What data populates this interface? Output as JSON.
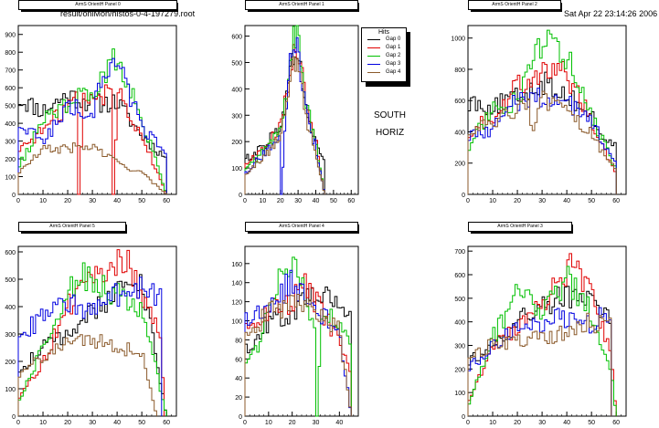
{
  "header": {
    "file_path": "result/onlMon/histos-0-4-197279.root",
    "datetime": "Sat Apr 22 23:14:26 2006"
  },
  "side_label": {
    "line1": "SOUTH",
    "line2": "HORIZ"
  },
  "legend": {
    "title": "Hits",
    "entries": [
      {
        "label": "Gap 0",
        "color": "#000000"
      },
      {
        "label": "Gap 1",
        "color": "#e00000"
      },
      {
        "label": "Gap 2",
        "color": "#00c000"
      },
      {
        "label": "Gap 3",
        "color": "#0000e0"
      },
      {
        "label": "Gap 4",
        "color": "#8b5a2b"
      }
    ]
  },
  "chart_data": [
    {
      "type": "line",
      "title": "ArmS OrientH Panel 0",
      "xlim": [
        0,
        64
      ],
      "ylim": [
        0,
        950
      ],
      "xticks": [
        0,
        10,
        20,
        30,
        40,
        50,
        60
      ],
      "yticks": [
        0,
        100,
        200,
        300,
        400,
        500,
        600,
        700,
        800,
        900
      ],
      "series": [
        {
          "color": "#000000",
          "x": [
            0,
            10,
            20,
            30,
            40,
            50,
            60
          ],
          "values": [
            540,
            470,
            560,
            510,
            520,
            330,
            200
          ]
        },
        {
          "color": "#e00000",
          "x": [
            0,
            10,
            20,
            24,
            25,
            26,
            30,
            38,
            39,
            40,
            50,
            60
          ],
          "values": [
            250,
            360,
            500,
            560,
            0,
            540,
            530,
            580,
            0,
            600,
            330,
            0
          ]
        },
        {
          "color": "#00c000",
          "x": [
            0,
            10,
            20,
            30,
            35,
            38,
            40,
            45,
            50,
            55,
            60
          ],
          "values": [
            150,
            410,
            520,
            560,
            660,
            880,
            750,
            620,
            400,
            230,
            0
          ]
        },
        {
          "color": "#0000e0",
          "x": [
            0,
            10,
            20,
            30,
            35,
            38,
            42,
            50,
            60
          ],
          "values": [
            400,
            300,
            490,
            460,
            690,
            760,
            680,
            380,
            240
          ]
        },
        {
          "color": "#8b5a2b",
          "x": [
            0,
            10,
            20,
            30,
            40,
            50,
            60
          ],
          "values": [
            120,
            250,
            260,
            270,
            180,
            120,
            0
          ]
        }
      ]
    },
    {
      "type": "line",
      "title": "ArmS OrientH Panel 1",
      "xlim": [
        0,
        64
      ],
      "ylim": [
        0,
        640
      ],
      "xticks": [
        0,
        10,
        20,
        30,
        40,
        50,
        60
      ],
      "yticks": [
        0,
        100,
        200,
        300,
        400,
        500,
        600
      ],
      "series": [
        {
          "color": "#000000",
          "x": [
            0,
            10,
            20,
            25,
            28,
            30,
            35,
            40,
            45
          ],
          "values": [
            130,
            180,
            260,
            420,
            560,
            540,
            300,
            200,
            120
          ]
        },
        {
          "color": "#e00000",
          "x": [
            0,
            10,
            20,
            25,
            28,
            30,
            35,
            40,
            45
          ],
          "values": [
            110,
            170,
            250,
            450,
            590,
            560,
            320,
            210,
            0
          ]
        },
        {
          "color": "#00c000",
          "x": [
            0,
            10,
            20,
            25,
            28,
            30,
            35,
            40,
            45
          ],
          "values": [
            90,
            160,
            240,
            470,
            610,
            580,
            330,
            190,
            0
          ]
        },
        {
          "color": "#0000e0",
          "x": [
            0,
            10,
            20,
            21,
            22,
            23,
            25,
            28,
            30,
            35,
            40,
            45
          ],
          "values": [
            80,
            150,
            220,
            0,
            230,
            260,
            460,
            600,
            550,
            290,
            180,
            0
          ]
        },
        {
          "color": "#8b5a2b",
          "x": [
            0,
            10,
            20,
            25,
            28,
            30,
            35,
            40,
            45
          ],
          "values": [
            70,
            140,
            210,
            430,
            520,
            500,
            280,
            160,
            0
          ]
        }
      ]
    },
    {
      "type": "line",
      "title": "ArmS OrientH Panel 2",
      "xlim": [
        0,
        64
      ],
      "ylim": [
        0,
        1080
      ],
      "xticks": [
        0,
        10,
        20,
        30,
        40,
        50,
        60
      ],
      "yticks": [
        0,
        200,
        400,
        600,
        800,
        1000
      ],
      "series": [
        {
          "color": "#000000",
          "x": [
            0,
            10,
            20,
            30,
            40,
            50,
            55,
            60
          ],
          "values": [
            600,
            560,
            620,
            720,
            640,
            500,
            360,
            300
          ]
        },
        {
          "color": "#e00000",
          "x": [
            0,
            10,
            20,
            30,
            40,
            50,
            60
          ],
          "values": [
            400,
            500,
            700,
            800,
            760,
            480,
            120
          ]
        },
        {
          "color": "#00c000",
          "x": [
            0,
            10,
            20,
            25,
            30,
            35,
            40,
            45,
            50,
            60
          ],
          "values": [
            300,
            550,
            600,
            800,
            940,
            1000,
            880,
            700,
            500,
            160
          ]
        },
        {
          "color": "#0000e0",
          "x": [
            0,
            10,
            20,
            30,
            40,
            50,
            60
          ],
          "values": [
            380,
            420,
            600,
            620,
            600,
            460,
            200
          ]
        },
        {
          "color": "#8b5a2b",
          "x": [
            0,
            10,
            20,
            25,
            26,
            30,
            40,
            50,
            60
          ],
          "values": [
            420,
            440,
            560,
            620,
            340,
            600,
            520,
            380,
            160
          ]
        }
      ]
    },
    {
      "type": "line",
      "title": "ArmS OrientH Panel 5",
      "xlim": [
        0,
        64
      ],
      "ylim": [
        0,
        620
      ],
      "xticks": [
        0,
        10,
        20,
        30,
        40,
        50,
        60
      ],
      "yticks": [
        0,
        100,
        200,
        300,
        400,
        500,
        600
      ],
      "series": [
        {
          "color": "#000000",
          "x": [
            0,
            10,
            20,
            30,
            40,
            50,
            60
          ],
          "values": [
            160,
            250,
            300,
            380,
            460,
            500,
            0
          ]
        },
        {
          "color": "#e00000",
          "x": [
            0,
            10,
            20,
            30,
            40,
            45,
            50,
            58,
            59
          ],
          "values": [
            60,
            200,
            400,
            500,
            560,
            560,
            420,
            300,
            0
          ]
        },
        {
          "color": "#00c000",
          "x": [
            0,
            10,
            20,
            25,
            30,
            40,
            50,
            55,
            60
          ],
          "values": [
            50,
            250,
            450,
            520,
            500,
            440,
            380,
            200,
            0
          ]
        },
        {
          "color": "#0000e0",
          "x": [
            0,
            10,
            20,
            30,
            40,
            50,
            58
          ],
          "values": [
            290,
            360,
            420,
            380,
            440,
            460,
            420
          ]
        },
        {
          "color": "#8b5a2b",
          "x": [
            0,
            10,
            20,
            30,
            40,
            50,
            56
          ],
          "values": [
            140,
            220,
            260,
            280,
            250,
            240,
            0
          ]
        }
      ]
    },
    {
      "type": "line",
      "title": "ArmS OrientH Panel 4",
      "xlim": [
        0,
        48
      ],
      "ylim": [
        0,
        178
      ],
      "xticks": [
        0,
        10,
        20,
        30,
        40
      ],
      "yticks": [
        0,
        20,
        40,
        60,
        80,
        100,
        120,
        140,
        160
      ],
      "series": [
        {
          "color": "#000000",
          "x": [
            0,
            5,
            10,
            20,
            30,
            40,
            45
          ],
          "values": [
            70,
            80,
            100,
            110,
            130,
            120,
            110
          ]
        },
        {
          "color": "#e00000",
          "x": [
            0,
            10,
            20,
            25,
            30,
            35,
            40,
            45
          ],
          "values": [
            90,
            110,
            120,
            145,
            120,
            100,
            80,
            40
          ]
        },
        {
          "color": "#00c000",
          "x": [
            0,
            5,
            10,
            15,
            20,
            25,
            30,
            31,
            32,
            35,
            40,
            45
          ],
          "values": [
            50,
            70,
            120,
            150,
            165,
            140,
            80,
            0,
            100,
            110,
            100,
            80
          ]
        },
        {
          "color": "#0000e0",
          "x": [
            0,
            10,
            20,
            30,
            40,
            45
          ],
          "values": [
            100,
            120,
            140,
            110,
            90,
            0
          ]
        },
        {
          "color": "#8b5a2b",
          "x": [
            0,
            10,
            20,
            30,
            40,
            45
          ],
          "values": [
            80,
            110,
            120,
            110,
            90,
            0
          ]
        }
      ]
    },
    {
      "type": "line",
      "title": "ArmS OrientH Panel 3",
      "xlim": [
        0,
        64
      ],
      "ylim": [
        0,
        720
      ],
      "xticks": [
        0,
        10,
        20,
        30,
        40,
        50,
        60
      ],
      "yticks": [
        0,
        100,
        200,
        300,
        400,
        500,
        600,
        700
      ],
      "series": [
        {
          "color": "#000000",
          "x": [
            0,
            10,
            20,
            30,
            40,
            50,
            58
          ],
          "values": [
            230,
            300,
            400,
            470,
            520,
            480,
            400
          ]
        },
        {
          "color": "#e00000",
          "x": [
            0,
            10,
            20,
            30,
            40,
            43,
            50,
            58,
            60
          ],
          "values": [
            60,
            300,
            380,
            480,
            600,
            660,
            500,
            280,
            0
          ]
        },
        {
          "color": "#00c000",
          "x": [
            0,
            10,
            20,
            30,
            40,
            50,
            58,
            60
          ],
          "values": [
            40,
            330,
            520,
            440,
            580,
            440,
            200,
            0
          ]
        },
        {
          "color": "#0000e0",
          "x": [
            0,
            10,
            20,
            30,
            40,
            50,
            58
          ],
          "values": [
            200,
            300,
            380,
            400,
            420,
            380,
            460
          ]
        },
        {
          "color": "#8b5a2b",
          "x": [
            0,
            10,
            20,
            30,
            40,
            50,
            58
          ],
          "values": [
            260,
            300,
            320,
            330,
            360,
            400,
            380
          ]
        }
      ]
    }
  ]
}
